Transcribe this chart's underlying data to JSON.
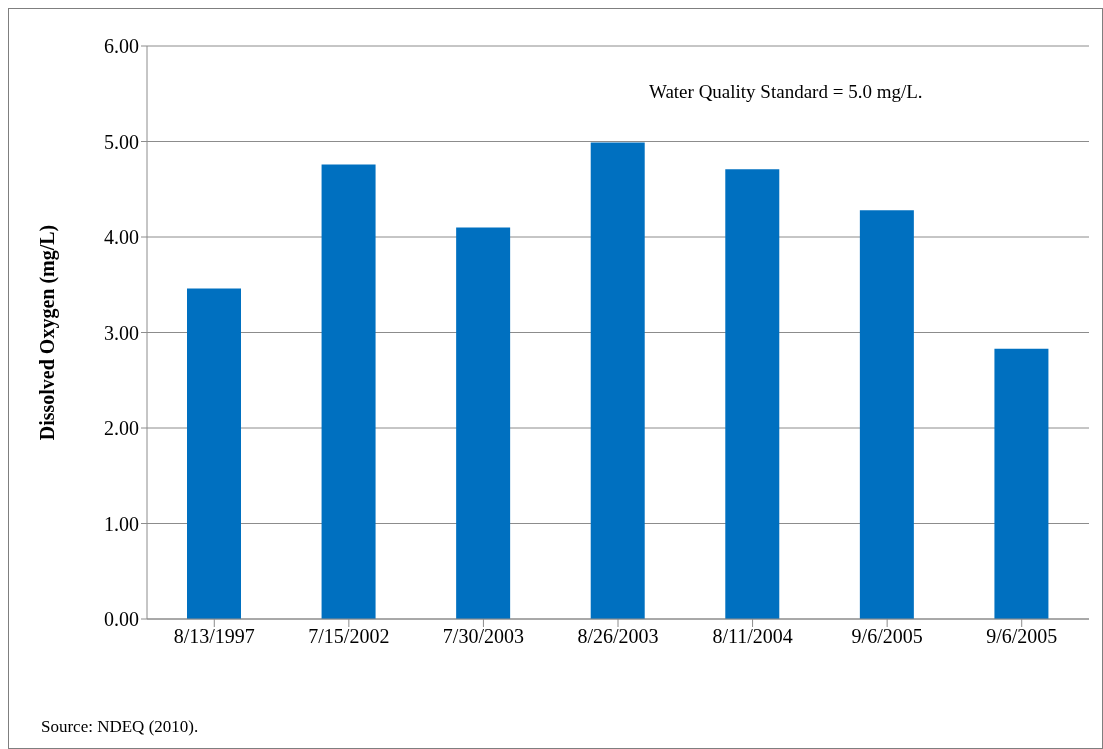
{
  "chart_data": {
    "type": "bar",
    "ylabel": "Dissolved Oxygen (mg/L)",
    "categories": [
      "8/13/1997",
      "7/15/2002",
      "7/30/2003",
      "8/26/2003",
      "8/11/2004",
      "9/6/2005",
      "9/6/2005"
    ],
    "values": [
      3.46,
      4.76,
      4.1,
      4.99,
      4.71,
      4.28,
      2.83
    ],
    "color": "#0070c0",
    "ylim": [
      0,
      6
    ],
    "yticks": [
      {
        "value": 0,
        "label": "0.00"
      },
      {
        "value": 1,
        "label": "1.00"
      },
      {
        "value": 2,
        "label": "2.00"
      },
      {
        "value": 3,
        "label": "3.00"
      },
      {
        "value": 4,
        "label": "4.00"
      },
      {
        "value": 5,
        "label": "5.00"
      },
      {
        "value": 6,
        "label": "6.00"
      }
    ],
    "grid": "y",
    "legend": false,
    "annotations": [
      "Water Quality Standard = 5.0 mg/L.",
      "Source: NDEQ (2010)."
    ]
  }
}
